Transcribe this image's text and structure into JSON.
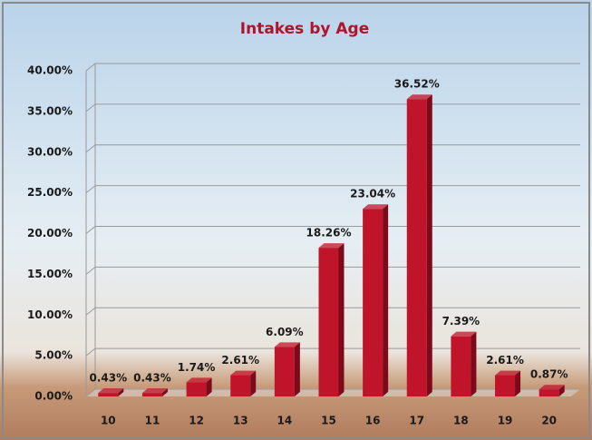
{
  "chart_data": {
    "type": "bar",
    "title": "Intakes by Age",
    "categories": [
      "10",
      "11",
      "12",
      "13",
      "14",
      "15",
      "16",
      "17",
      "18",
      "19",
      "20"
    ],
    "values": [
      0.43,
      0.43,
      1.74,
      2.61,
      6.09,
      18.26,
      23.04,
      36.52,
      7.39,
      2.61,
      0.87
    ],
    "value_labels": [
      "0.43%",
      "0.43%",
      "1.74%",
      "2.61%",
      "6.09%",
      "18.26%",
      "23.04%",
      "36.52%",
      "7.39%",
      "2.61%",
      "0.87%"
    ],
    "color": "#c0142a",
    "ylim": [
      0,
      40
    ],
    "yticks": [
      {
        "value": 0,
        "label": "0.00%"
      },
      {
        "value": 5,
        "label": "5.00%"
      },
      {
        "value": 10,
        "label": "10.00%"
      },
      {
        "value": 15,
        "label": "15.00%"
      },
      {
        "value": 20,
        "label": "20.00%"
      },
      {
        "value": 25,
        "label": "25.00%"
      },
      {
        "value": 30,
        "label": "30.00%"
      },
      {
        "value": 35,
        "label": "35.00%"
      },
      {
        "value": 40,
        "label": "40.00%"
      }
    ],
    "grid": true
  }
}
